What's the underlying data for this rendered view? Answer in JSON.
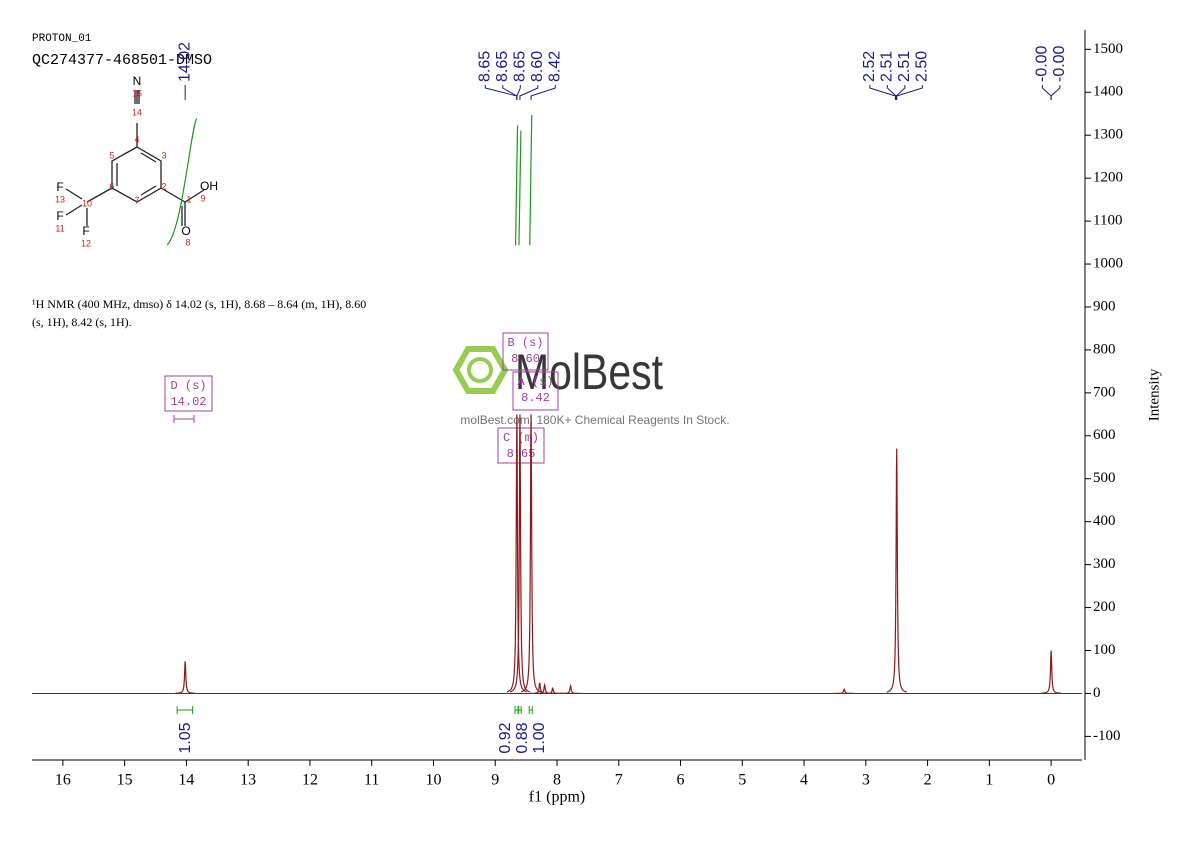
{
  "header": {
    "experiment": "PROTON_01",
    "sample": "QC274377-468501-DMSO"
  },
  "molecule": {
    "atoms": [
      "N",
      "15",
      "14",
      "4",
      "5",
      "3",
      "6",
      "2",
      "F",
      "13",
      "10",
      "F",
      "11",
      "F",
      "12",
      "7",
      "1",
      "OH",
      "9",
      "O",
      "8"
    ]
  },
  "description": [
    "¹H NMR (400 MHz, dmso) δ 14.02 (s, 1H), 8.68 – 8.64 (m, 1H), 8.60",
    "(s, 1H), 8.42 (s, 1H)."
  ],
  "watermark": {
    "brand": "MolBest",
    "tagline": "molBest.com, 180K+ Chemical Reagents In Stock."
  },
  "multiplets": [
    {
      "name": "D (s)",
      "shift": "14.02"
    },
    {
      "name": "B (s)",
      "shift": "8.60"
    },
    {
      "name": "A (s)",
      "shift": "8.42"
    },
    {
      "name": "C (m)",
      "shift": "8.65"
    }
  ],
  "chart_data": {
    "type": "nmr",
    "x_label": "f1 (ppm)",
    "y_label": "Intensity",
    "xlim": [
      16.5,
      -0.5
    ],
    "xticks": [
      16,
      15,
      14,
      13,
      12,
      11,
      10,
      9,
      8,
      7,
      6,
      5,
      4,
      3,
      2,
      1,
      0
    ],
    "ylim": [
      -155,
      1545
    ],
    "yticks": [
      -100,
      0,
      100,
      200,
      300,
      400,
      500,
      600,
      700,
      800,
      900,
      1000,
      1100,
      1200,
      1300,
      1400,
      1500
    ],
    "color": "#8b1a1a",
    "peaks": {
      "x": [
        14.02,
        8.65,
        8.6,
        8.42,
        8.28,
        8.2,
        8.07,
        7.78,
        3.35,
        2.5,
        0
      ],
      "values": [
        75,
        650,
        650,
        650,
        25,
        20,
        12,
        18,
        10,
        570,
        100
      ]
    },
    "peak_labels": [
      [
        {
          "value": 14.02,
          "label": "14.02"
        }
      ],
      [
        {
          "value": 8.65,
          "label": "8.65"
        },
        {
          "value": 8.65,
          "label": "8.65"
        },
        {
          "value": 8.65,
          "label": "8.65"
        },
        {
          "value": 8.6,
          "label": "8.60"
        },
        {
          "value": 8.42,
          "label": "8.42"
        }
      ],
      [
        {
          "value": 2.52,
          "label": "2.52"
        },
        {
          "value": 2.51,
          "label": "2.51"
        },
        {
          "value": 2.51,
          "label": "2.51"
        },
        {
          "value": 2.5,
          "label": "2.50"
        }
      ],
      [
        {
          "value": 0,
          "label": "-0.00"
        },
        {
          "value": 0,
          "label": "-0.00"
        }
      ]
    ],
    "integrals": [
      {
        "range": [
          14.15,
          13.9
        ],
        "value": 1.05
      },
      {
        "range": [
          8.68,
          8.63
        ],
        "value": 0.92
      },
      {
        "range": [
          8.62,
          8.58
        ],
        "value": 0.88
      },
      {
        "range": [
          8.45,
          8.4
        ],
        "value": {
          "value": 1,
          "label": "1.00"
        }
      }
    ]
  }
}
